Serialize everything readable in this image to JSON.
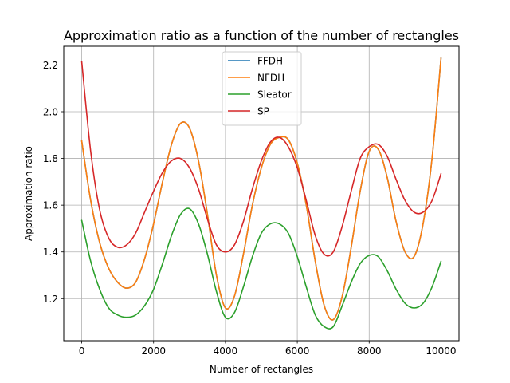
{
  "chart_data": {
    "type": "line",
    "title": "Approximation ratio as a function of the number of rectangles",
    "xlabel": "Number of rectangles",
    "ylabel": "Approximation ratio",
    "xlim": [
      -500,
      10500
    ],
    "ylim": [
      1.02,
      2.28
    ],
    "xticks": [
      0,
      2000,
      4000,
      6000,
      8000,
      10000
    ],
    "yticks": [
      1.2,
      1.4,
      1.6,
      1.8,
      2.0,
      2.2
    ],
    "xtick_labels": [
      "0",
      "2000",
      "4000",
      "6000",
      "8000",
      "10000"
    ],
    "ytick_labels": [
      "1.2",
      "1.4",
      "1.6",
      "1.8",
      "2.0",
      "2.2"
    ],
    "grid": true,
    "legend_position": "top-center",
    "x": [
      0,
      250,
      500,
      750,
      1000,
      1250,
      1500,
      1750,
      2000,
      2250,
      2500,
      2750,
      3000,
      3250,
      3500,
      3750,
      4000,
      4250,
      4500,
      4750,
      5000,
      5250,
      5500,
      5750,
      6000,
      6250,
      6500,
      6750,
      7000,
      7250,
      7500,
      7750,
      8000,
      8250,
      8500,
      8750,
      9000,
      9250,
      9500,
      9750,
      10000
    ],
    "series": [
      {
        "name": "FFDH",
        "color": "#1f77b4",
        "values": [
          1.875,
          1.62,
          1.44,
          1.33,
          1.27,
          1.245,
          1.27,
          1.37,
          1.52,
          1.7,
          1.86,
          1.95,
          1.93,
          1.79,
          1.56,
          1.3,
          1.16,
          1.21,
          1.39,
          1.6,
          1.76,
          1.86,
          1.89,
          1.88,
          1.78,
          1.6,
          1.36,
          1.17,
          1.11,
          1.21,
          1.42,
          1.66,
          1.83,
          1.84,
          1.72,
          1.53,
          1.4,
          1.38,
          1.52,
          1.8,
          2.23
        ]
      },
      {
        "name": "NFDH",
        "color": "#ff7f0e",
        "values": [
          1.875,
          1.62,
          1.44,
          1.33,
          1.27,
          1.245,
          1.27,
          1.37,
          1.52,
          1.7,
          1.86,
          1.95,
          1.93,
          1.79,
          1.56,
          1.3,
          1.16,
          1.21,
          1.39,
          1.6,
          1.76,
          1.86,
          1.89,
          1.88,
          1.78,
          1.6,
          1.36,
          1.17,
          1.11,
          1.21,
          1.42,
          1.66,
          1.83,
          1.84,
          1.72,
          1.53,
          1.4,
          1.38,
          1.52,
          1.8,
          2.23
        ]
      },
      {
        "name": "Sleator",
        "color": "#2ca02c",
        "values": [
          1.535,
          1.36,
          1.24,
          1.16,
          1.13,
          1.12,
          1.13,
          1.17,
          1.24,
          1.35,
          1.47,
          1.56,
          1.585,
          1.52,
          1.39,
          1.23,
          1.12,
          1.14,
          1.25,
          1.38,
          1.48,
          1.52,
          1.52,
          1.48,
          1.38,
          1.25,
          1.13,
          1.08,
          1.08,
          1.17,
          1.27,
          1.35,
          1.385,
          1.38,
          1.32,
          1.24,
          1.18,
          1.16,
          1.18,
          1.25,
          1.36
        ]
      },
      {
        "name": "SP",
        "color": "#d62728",
        "values": [
          2.215,
          1.83,
          1.58,
          1.46,
          1.42,
          1.43,
          1.48,
          1.57,
          1.66,
          1.74,
          1.79,
          1.8,
          1.76,
          1.67,
          1.54,
          1.43,
          1.4,
          1.43,
          1.53,
          1.67,
          1.79,
          1.87,
          1.89,
          1.85,
          1.76,
          1.62,
          1.47,
          1.39,
          1.4,
          1.51,
          1.66,
          1.8,
          1.85,
          1.86,
          1.81,
          1.71,
          1.62,
          1.57,
          1.57,
          1.62,
          1.735
        ]
      }
    ]
  }
}
